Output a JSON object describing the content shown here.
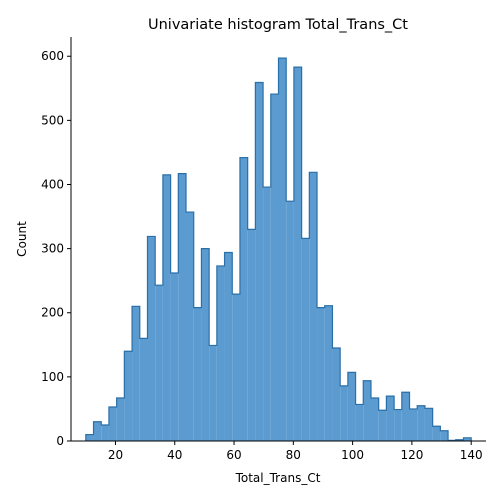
{
  "chart_data": {
    "type": "bar",
    "title": "Univariate histogram Total_Trans_Ct",
    "xlabel": "Total_Trans_Ct",
    "ylabel": "Count",
    "xlim": [
      5,
      145
    ],
    "ylim": [
      0,
      630
    ],
    "x_ticks": [
      20,
      40,
      60,
      80,
      100,
      120,
      140
    ],
    "y_ticks": [
      0,
      100,
      200,
      300,
      400,
      500,
      600
    ],
    "bin_edges": [
      10,
      12.6,
      15.2,
      17.8,
      20.4,
      23.0,
      25.6,
      28.2,
      30.8,
      33.4,
      36.0,
      38.6,
      41.2,
      43.8,
      46.4,
      49.0,
      51.6,
      54.2,
      56.8,
      59.4,
      62.0,
      64.6,
      67.2,
      69.8,
      72.4,
      75.0,
      77.6,
      80.2,
      82.8,
      85.4,
      88.0,
      90.6,
      93.2,
      95.8,
      98.4,
      101.0,
      103.6,
      106.2,
      108.8,
      111.4,
      114.0,
      116.6,
      119.2,
      121.8,
      124.4,
      127.0,
      129.6,
      132.2,
      134.8,
      137.4,
      140.0
    ],
    "counts": [
      10,
      30,
      25,
      53,
      67,
      140,
      210,
      160,
      319,
      243,
      415,
      262,
      417,
      357,
      208,
      300,
      149,
      273,
      294,
      229,
      442,
      330,
      559,
      396,
      541,
      597,
      374,
      583,
      316,
      419,
      208,
      211,
      145,
      86,
      107,
      57,
      94,
      67,
      48,
      70,
      49,
      76,
      50,
      55,
      51,
      23,
      16,
      1,
      2,
      5
    ],
    "grid": false,
    "legend": "none",
    "colors": {
      "bar_fill": "#5b9bd0",
      "bar_edge": "#2a6fa8",
      "axis": "#000000"
    }
  }
}
